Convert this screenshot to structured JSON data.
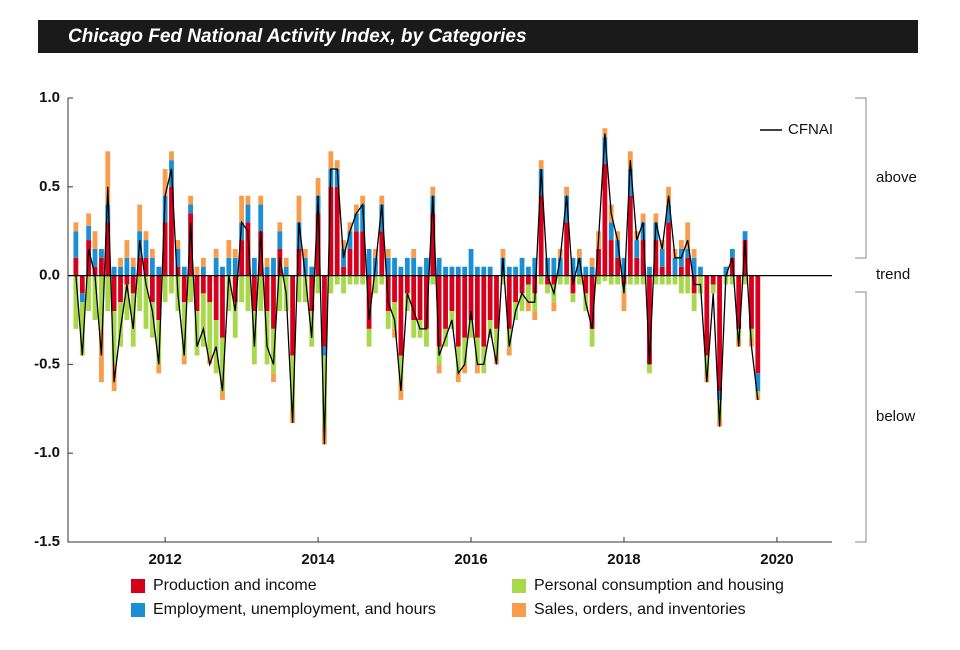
{
  "chart_data": {
    "type": "stacked-bar",
    "title": "Chicago Fed National Activity Index, by Categories",
    "x": [
      2010.833,
      2010.917,
      2011.0,
      2011.083,
      2011.167,
      2011.25,
      2011.333,
      2011.417,
      2011.5,
      2011.583,
      2011.667,
      2011.75,
      2011.833,
      2011.917,
      2012.0,
      2012.083,
      2012.167,
      2012.25,
      2012.333,
      2012.417,
      2012.5,
      2012.583,
      2012.667,
      2012.75,
      2012.833,
      2012.917,
      2013.0,
      2013.083,
      2013.167,
      2013.25,
      2013.333,
      2013.417,
      2013.5,
      2013.583,
      2013.667,
      2013.75,
      2013.833,
      2013.917,
      2014.0,
      2014.083,
      2014.167,
      2014.25,
      2014.333,
      2014.417,
      2014.5,
      2014.583,
      2014.667,
      2014.75,
      2014.833,
      2014.917,
      2015.0,
      2015.083,
      2015.167,
      2015.25,
      2015.333,
      2015.417,
      2015.5,
      2015.583,
      2015.667,
      2015.75,
      2015.833,
      2015.917,
      2016.0,
      2016.083,
      2016.167,
      2016.25,
      2016.333,
      2016.417,
      2016.5,
      2016.583,
      2016.667,
      2016.75,
      2016.833,
      2016.917,
      2017.0,
      2017.083,
      2017.167,
      2017.25,
      2017.333,
      2017.417,
      2017.5,
      2017.583,
      2017.667,
      2017.75,
      2017.833,
      2017.917,
      2018.0,
      2018.083,
      2018.167,
      2018.25,
      2018.333,
      2018.417,
      2018.5,
      2018.583,
      2018.667,
      2018.75,
      2018.833,
      2018.917,
      2019.0,
      2019.083,
      2019.167,
      2019.25,
      2019.333,
      2019.417,
      2019.5,
      2019.583,
      2019.667,
      2019.75
    ],
    "series": [
      {
        "name": "Production and income",
        "color": "#d7001c",
        "values": [
          0.1,
          -0.1,
          0.2,
          0.05,
          0.1,
          0.3,
          -0.2,
          -0.15,
          -0.05,
          -0.1,
          0.1,
          0.1,
          -0.15,
          -0.25,
          0.3,
          0.5,
          0.05,
          -0.15,
          0.35,
          -0.2,
          -0.1,
          -0.15,
          -0.25,
          -0.35,
          0.0,
          -0.15,
          0.2,
          0.3,
          -0.2,
          0.25,
          -0.2,
          -0.3,
          0.15,
          0.0,
          -0.45,
          0.15,
          0.0,
          -0.2,
          0.35,
          -0.4,
          0.5,
          0.5,
          0.05,
          0.15,
          0.25,
          0.25,
          -0.3,
          0.0,
          0.25,
          -0.2,
          -0.15,
          -0.45,
          -0.1,
          -0.25,
          -0.25,
          -0.3,
          0.35,
          -0.4,
          -0.3,
          -0.2,
          -0.4,
          -0.35,
          -0.25,
          -0.35,
          -0.4,
          -0.25,
          -0.3,
          0.0,
          -0.3,
          -0.15,
          -0.1,
          -0.05,
          -0.1,
          0.45,
          -0.05,
          -0.05,
          0.0,
          0.3,
          -0.1,
          0.0,
          -0.1,
          -0.3,
          0.15,
          0.63,
          0.2,
          0.1,
          -0.05,
          0.45,
          0.1,
          0.2,
          -0.5,
          0.2,
          0.05,
          0.3,
          0.0,
          0.05,
          0.1,
          -0.1,
          0.0,
          -0.45,
          -0.05,
          -0.65,
          0.0,
          0.1,
          -0.3,
          0.2,
          -0.3,
          -0.55
        ]
      },
      {
        "name": "Employment, unemployment, and hours",
        "color": "#1a8fd4",
        "values": [
          0.15,
          -0.05,
          0.08,
          0.1,
          0.05,
          0.1,
          0.05,
          0.05,
          0.1,
          0.05,
          0.15,
          0.1,
          0.1,
          0.05,
          0.15,
          0.15,
          0.1,
          0.05,
          0.05,
          0.0,
          0.05,
          0.0,
          0.1,
          0.05,
          0.1,
          0.1,
          0.1,
          0.1,
          0.1,
          0.15,
          0.05,
          0.1,
          0.1,
          0.05,
          0.0,
          0.15,
          0.1,
          0.05,
          0.1,
          -0.05,
          0.1,
          0.1,
          0.1,
          0.1,
          0.1,
          0.15,
          0.15,
          0.1,
          0.15,
          0.1,
          0.1,
          0.05,
          0.1,
          0.1,
          0.05,
          0.1,
          0.1,
          0.1,
          0.05,
          0.05,
          0.05,
          0.05,
          0.15,
          0.05,
          0.05,
          0.05,
          0.0,
          0.1,
          0.05,
          0.05,
          0.1,
          0.05,
          0.1,
          0.15,
          0.1,
          0.1,
          0.1,
          0.15,
          0.1,
          0.1,
          0.05,
          0.05,
          0.0,
          0.15,
          0.1,
          0.1,
          0.1,
          0.15,
          0.1,
          0.1,
          0.05,
          0.1,
          0.1,
          0.1,
          0.1,
          0.1,
          0.05,
          0.1,
          0.05,
          0.0,
          0.0,
          -0.05,
          0.05,
          0.05,
          0.0,
          0.05,
          0.0,
          -0.1
        ]
      },
      {
        "name": "Personal consumption and housing",
        "color": "#a8d94a",
        "values": [
          -0.3,
          -0.3,
          -0.2,
          -0.25,
          -0.3,
          -0.2,
          -0.3,
          -0.25,
          -0.2,
          -0.3,
          -0.2,
          -0.3,
          -0.2,
          -0.25,
          -0.15,
          -0.1,
          -0.2,
          -0.3,
          -0.15,
          -0.25,
          -0.3,
          -0.3,
          -0.3,
          -0.3,
          -0.2,
          -0.2,
          -0.15,
          -0.2,
          -0.3,
          -0.2,
          -0.3,
          -0.25,
          -0.2,
          -0.2,
          -0.3,
          -0.15,
          -0.15,
          -0.2,
          -0.1,
          -0.4,
          -0.1,
          -0.05,
          -0.1,
          -0.05,
          -0.05,
          -0.05,
          -0.1,
          -0.1,
          -0.05,
          -0.1,
          -0.15,
          -0.15,
          -0.1,
          -0.1,
          -0.1,
          -0.1,
          -0.05,
          -0.1,
          -0.1,
          -0.1,
          -0.15,
          -0.15,
          -0.1,
          -0.15,
          -0.15,
          -0.1,
          -0.15,
          -0.05,
          -0.1,
          -0.1,
          -0.1,
          -0.1,
          -0.1,
          -0.05,
          -0.05,
          -0.1,
          -0.05,
          -0.05,
          -0.05,
          -0.05,
          -0.1,
          -0.1,
          -0.05,
          -0.03,
          -0.05,
          -0.05,
          -0.05,
          -0.05,
          -0.05,
          -0.05,
          -0.05,
          -0.05,
          -0.05,
          -0.05,
          -0.05,
          -0.1,
          -0.1,
          -0.1,
          -0.1,
          -0.1,
          -0.05,
          -0.1,
          -0.05,
          -0.05,
          -0.05,
          -0.05,
          -0.05,
          -0.02
        ]
      },
      {
        "name": "Sales, orders, and inventories",
        "color": "#f99d4d",
        "values": [
          0.05,
          0.0,
          0.07,
          0.1,
          -0.3,
          0.3,
          -0.15,
          0.05,
          0.1,
          0.05,
          0.15,
          0.05,
          0.05,
          -0.05,
          0.15,
          0.05,
          0.05,
          -0.05,
          0.05,
          0.05,
          0.05,
          -0.05,
          0.05,
          -0.05,
          0.1,
          0.05,
          0.15,
          0.05,
          0.0,
          0.05,
          0.05,
          -0.05,
          0.05,
          0.05,
          -0.08,
          0.15,
          0.05,
          0.0,
          0.1,
          -0.1,
          0.1,
          0.05,
          0.05,
          0.05,
          0.05,
          0.05,
          0.0,
          0.05,
          0.05,
          0.05,
          -0.05,
          -0.1,
          0.0,
          0.05,
          0.0,
          0.0,
          0.05,
          -0.05,
          0.0,
          0.0,
          -0.05,
          -0.05,
          0.0,
          -0.05,
          0.0,
          0.0,
          -0.05,
          0.05,
          -0.05,
          0.0,
          0.0,
          -0.05,
          -0.05,
          0.05,
          0.0,
          -0.05,
          0.05,
          0.05,
          0.0,
          0.05,
          0.0,
          0.05,
          0.1,
          0.05,
          0.1,
          0.05,
          -0.1,
          0.1,
          0.05,
          0.05,
          0.0,
          0.05,
          0.05,
          0.1,
          0.05,
          0.05,
          0.15,
          0.05,
          0.0,
          -0.05,
          0.0,
          -0.05,
          0.0,
          0.0,
          -0.05,
          0.0,
          -0.05,
          -0.03
        ]
      }
    ],
    "line": {
      "name": "CFNAI",
      "color": "#000000",
      "values": [
        0.0,
        -0.45,
        0.15,
        0.0,
        -0.45,
        0.5,
        -0.6,
        -0.3,
        -0.05,
        -0.3,
        0.2,
        -0.05,
        -0.2,
        -0.5,
        0.45,
        0.6,
        -0.1,
        -0.45,
        0.3,
        -0.4,
        -0.3,
        -0.5,
        -0.4,
        -0.65,
        0.0,
        -0.2,
        0.3,
        0.25,
        -0.4,
        0.25,
        -0.4,
        -0.5,
        0.1,
        -0.1,
        -0.83,
        0.3,
        0.0,
        -0.35,
        0.45,
        -0.95,
        0.6,
        0.6,
        0.1,
        0.25,
        0.35,
        0.4,
        -0.25,
        0.05,
        0.4,
        -0.15,
        -0.25,
        -0.65,
        -0.1,
        -0.2,
        -0.3,
        -0.3,
        0.45,
        -0.45,
        -0.35,
        -0.25,
        -0.55,
        -0.5,
        -0.2,
        -0.5,
        -0.5,
        -0.3,
        -0.5,
        0.1,
        -0.4,
        -0.2,
        -0.1,
        -0.15,
        -0.15,
        0.6,
        0.0,
        -0.1,
        0.1,
        0.45,
        -0.05,
        0.1,
        -0.15,
        -0.3,
        0.2,
        0.8,
        0.35,
        0.2,
        -0.1,
        0.65,
        0.2,
        0.3,
        -0.5,
        0.3,
        0.15,
        0.45,
        0.1,
        0.1,
        0.2,
        -0.05,
        -0.05,
        -0.6,
        -0.1,
        -0.85,
        0.0,
        0.1,
        -0.4,
        0.2,
        -0.4,
        -0.7
      ]
    },
    "xlim": [
      2010.73,
      2020.72
    ],
    "xticks": [
      2012,
      2014,
      2016,
      2018,
      2020
    ],
    "ylim": [
      -1.5,
      1
    ],
    "yticks": [
      {
        "value": 1,
        "label": "1.0"
      },
      0.5,
      {
        "value": 0,
        "label": "0.0"
      },
      -0.5,
      {
        "value": -1,
        "label": "-1.0"
      },
      -1.5
    ],
    "side_labels": [
      "above",
      "trend",
      "below"
    ]
  }
}
